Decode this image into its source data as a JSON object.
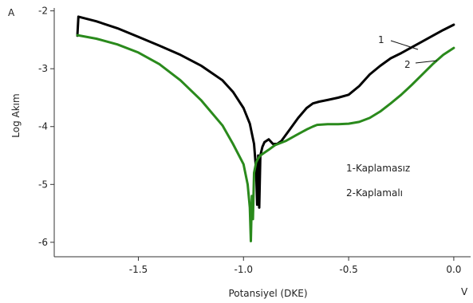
{
  "chart_data": {
    "type": "line",
    "title": "",
    "xlabel": "Potansiyel (DKE)",
    "ylabel": "Log Akım",
    "x_unit": "V",
    "y_unit": "A",
    "xlim": [
      -1.9,
      0.08
    ],
    "ylim": [
      -6.25,
      -1.95
    ],
    "x_ticks": [
      -1.5,
      -1.0,
      -0.5,
      0.0
    ],
    "x_tick_labels": [
      "-1.5",
      "-1.0",
      "-0.5",
      "0.0"
    ],
    "y_ticks": [
      -2,
      -3,
      -4,
      -5,
      -6
    ],
    "y_tick_labels": [
      "-2",
      "-3",
      "-4",
      "-5",
      "-6"
    ],
    "grid": false,
    "legend_entries": [
      "1-Kaplamasız",
      "2-Kaplamalı"
    ],
    "curve_labels": [
      "1",
      "2"
    ],
    "series": [
      {
        "name": "1-Kaplamasız",
        "color": "#000000",
        "x": [
          -1.79,
          -1.785,
          -1.7,
          -1.6,
          -1.5,
          -1.4,
          -1.3,
          -1.2,
          -1.1,
          -1.05,
          -1.0,
          -0.97,
          -0.95,
          -0.94,
          -0.935,
          -0.93,
          -0.925,
          -0.92,
          -0.91,
          -0.9,
          -0.88,
          -0.86,
          -0.84,
          -0.82,
          -0.78,
          -0.74,
          -0.7,
          -0.67,
          -0.64,
          -0.6,
          -0.55,
          -0.5,
          -0.45,
          -0.4,
          -0.35,
          -0.3,
          -0.25,
          -0.2,
          -0.15,
          -0.1,
          -0.05,
          0.0
        ],
        "y": [
          -2.43,
          -2.1,
          -2.18,
          -2.3,
          -2.45,
          -2.6,
          -2.76,
          -2.95,
          -3.2,
          -3.4,
          -3.68,
          -3.95,
          -4.3,
          -4.75,
          -5.35,
          -4.5,
          -5.4,
          -4.5,
          -4.35,
          -4.27,
          -4.22,
          -4.3,
          -4.3,
          -4.25,
          -4.05,
          -3.85,
          -3.68,
          -3.6,
          -3.57,
          -3.54,
          -3.5,
          -3.45,
          -3.3,
          -3.1,
          -2.95,
          -2.82,
          -2.73,
          -2.63,
          -2.53,
          -2.43,
          -2.33,
          -2.24
        ]
      },
      {
        "name": "2-Kaplamalı",
        "color": "#2a8a1c",
        "x": [
          -1.79,
          -1.7,
          -1.6,
          -1.5,
          -1.4,
          -1.3,
          -1.2,
          -1.1,
          -1.05,
          -1.0,
          -0.98,
          -0.97,
          -0.965,
          -0.96,
          -0.955,
          -0.95,
          -0.94,
          -0.93,
          -0.92,
          -0.9,
          -0.88,
          -0.85,
          -0.8,
          -0.75,
          -0.7,
          -0.67,
          -0.65,
          -0.6,
          -0.55,
          -0.5,
          -0.45,
          -0.4,
          -0.35,
          -0.3,
          -0.25,
          -0.2,
          -0.15,
          -0.1,
          -0.05,
          0.0
        ],
        "y": [
          -2.42,
          -2.48,
          -2.58,
          -2.72,
          -2.92,
          -3.2,
          -3.55,
          -3.98,
          -4.3,
          -4.65,
          -5.0,
          -5.4,
          -5.98,
          -5.2,
          -5.6,
          -4.8,
          -4.62,
          -4.55,
          -4.5,
          -4.45,
          -4.4,
          -4.32,
          -4.25,
          -4.15,
          -4.05,
          -4.0,
          -3.97,
          -3.96,
          -3.96,
          -3.95,
          -3.92,
          -3.85,
          -3.74,
          -3.6,
          -3.45,
          -3.28,
          -3.1,
          -2.92,
          -2.76,
          -2.64
        ]
      }
    ]
  }
}
